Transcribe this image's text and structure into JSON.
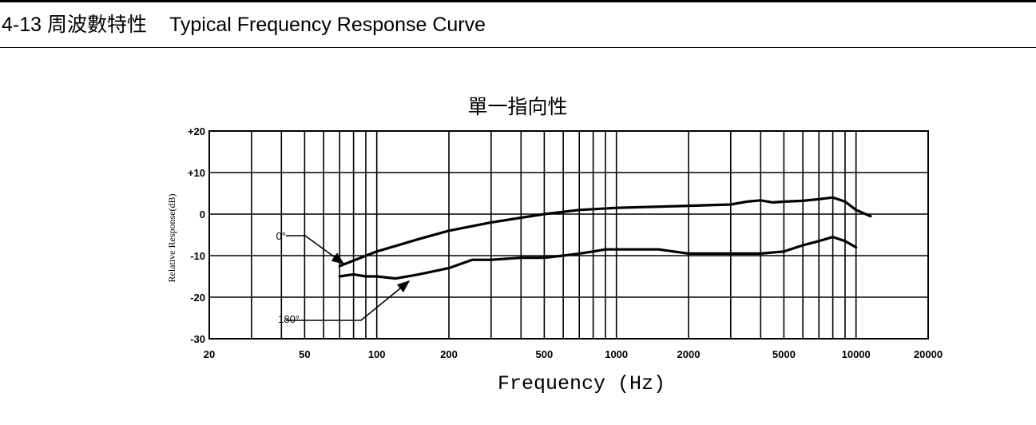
{
  "header": {
    "number_and_title_zh": "4-13 周波數特性",
    "title_en": "Typical Frequency Response Curve"
  },
  "chart_data": {
    "type": "line",
    "title": "單一指向性",
    "xlabel": "Frequency (Hz)",
    "ylabel": "Relative Response(dB)",
    "x_scale": "log",
    "xlim": [
      20,
      20000
    ],
    "ylim": [
      -30,
      20
    ],
    "grid": true,
    "x_tick_labels": [
      {
        "value": 20,
        "label": "20"
      },
      {
        "value": 50,
        "label": "50"
      },
      {
        "value": 100,
        "label": "100"
      },
      {
        "value": 200,
        "label": "200"
      },
      {
        "value": 500,
        "label": "500"
      },
      {
        "value": 1000,
        "label": "1000"
      },
      {
        "value": 2000,
        "label": "2000"
      },
      {
        "value": 5000,
        "label": "5000"
      },
      {
        "value": 10000,
        "label": "10000"
      },
      {
        "value": 20000,
        "label": "20000"
      }
    ],
    "x_gridlines": [
      20,
      30,
      40,
      50,
      60,
      70,
      80,
      90,
      100,
      200,
      300,
      400,
      500,
      600,
      700,
      800,
      900,
      1000,
      2000,
      3000,
      4000,
      5000,
      6000,
      7000,
      8000,
      9000,
      10000,
      20000
    ],
    "y_ticks": [
      {
        "value": 20,
        "label": "+20"
      },
      {
        "value": 10,
        "label": "+10"
      },
      {
        "value": 0,
        "label": "0"
      },
      {
        "value": -10,
        "label": "-10"
      },
      {
        "value": -20,
        "label": "-20"
      },
      {
        "value": -30,
        "label": "-30"
      }
    ],
    "series": [
      {
        "name": "0°",
        "x": [
          70,
          100,
          150,
          200,
          300,
          500,
          700,
          1000,
          2000,
          3000,
          3500,
          4000,
          4500,
          5000,
          6000,
          7000,
          8000,
          9000,
          10000,
          11500
        ],
        "y": [
          -12.5,
          -9,
          -6,
          -4,
          -2,
          0,
          1,
          1.5,
          2,
          2.3,
          3,
          3.3,
          2.8,
          3,
          3.2,
          3.6,
          4,
          3,
          1,
          -0.5
        ]
      },
      {
        "name": "180°",
        "x": [
          70,
          80,
          90,
          100,
          120,
          150,
          200,
          250,
          300,
          400,
          500,
          600,
          700,
          800,
          900,
          1000,
          1500,
          2000,
          3000,
          4000,
          5000,
          6000,
          7000,
          8000,
          9000,
          10000
        ],
        "y": [
          -15,
          -14.5,
          -15,
          -15,
          -15.5,
          -14.5,
          -13,
          -11,
          -11,
          -10.5,
          -10.5,
          -10,
          -9.5,
          -9,
          -8.5,
          -8.5,
          -8.5,
          -9.5,
          -9.5,
          -9.5,
          -9,
          -7.5,
          -6.5,
          -5.5,
          -6.5,
          -8
        ]
      }
    ],
    "annotations": [
      {
        "label": "0°",
        "points_to": "0°",
        "at_x": 70,
        "at_y": -12.5
      },
      {
        "label": "180°",
        "points_to": "180°",
        "at_x": 130,
        "at_y": -15.5
      }
    ]
  }
}
